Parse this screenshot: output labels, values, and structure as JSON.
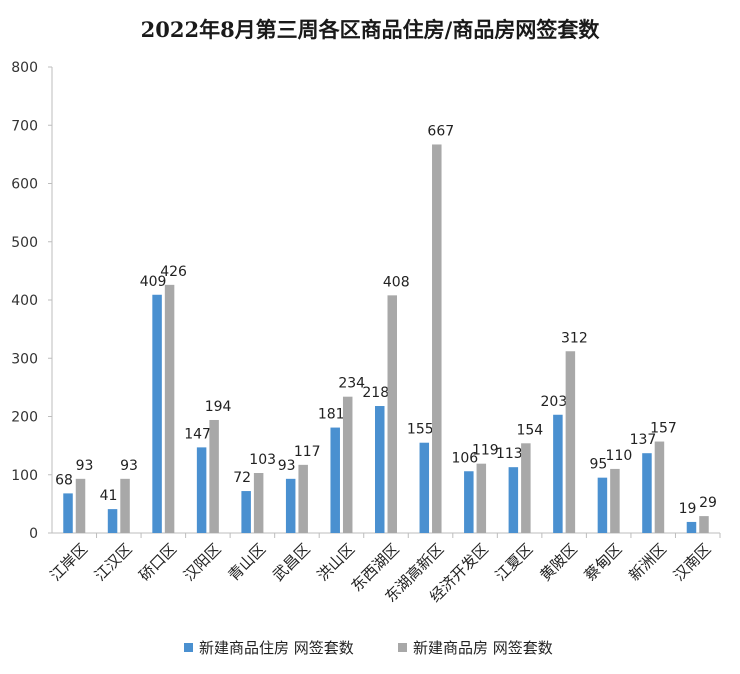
{
  "chart_data": {
    "type": "bar",
    "title": "2022年8月第三周各区商品住房/商品房网签套数",
    "xlabel": "",
    "ylabel": "",
    "ylim": [
      0,
      800
    ],
    "yticks": [
      0,
      100,
      200,
      300,
      400,
      500,
      600,
      700,
      800
    ],
    "categories": [
      "江岸区",
      "江汉区",
      "硚口区",
      "汉阳区",
      "青山区",
      "武昌区",
      "洪山区",
      "东西湖区",
      "东湖高新区",
      "经济开发区",
      "江夏区",
      "黄陂区",
      "蔡甸区",
      "新洲区",
      "汉南区"
    ],
    "series": [
      {
        "name": "新建商品住房 网签套数",
        "color": "#4a90d0",
        "values": [
          68,
          41,
          409,
          147,
          72,
          93,
          181,
          218,
          155,
          106,
          113,
          203,
          95,
          137,
          19
        ]
      },
      {
        "name": "新建商品房 网签套数",
        "color": "#a8a8a8",
        "values": [
          93,
          93,
          426,
          194,
          103,
          117,
          234,
          408,
          667,
          119,
          154,
          312,
          110,
          157,
          29
        ]
      }
    ],
    "grid": false,
    "legend_position": "bottom"
  }
}
